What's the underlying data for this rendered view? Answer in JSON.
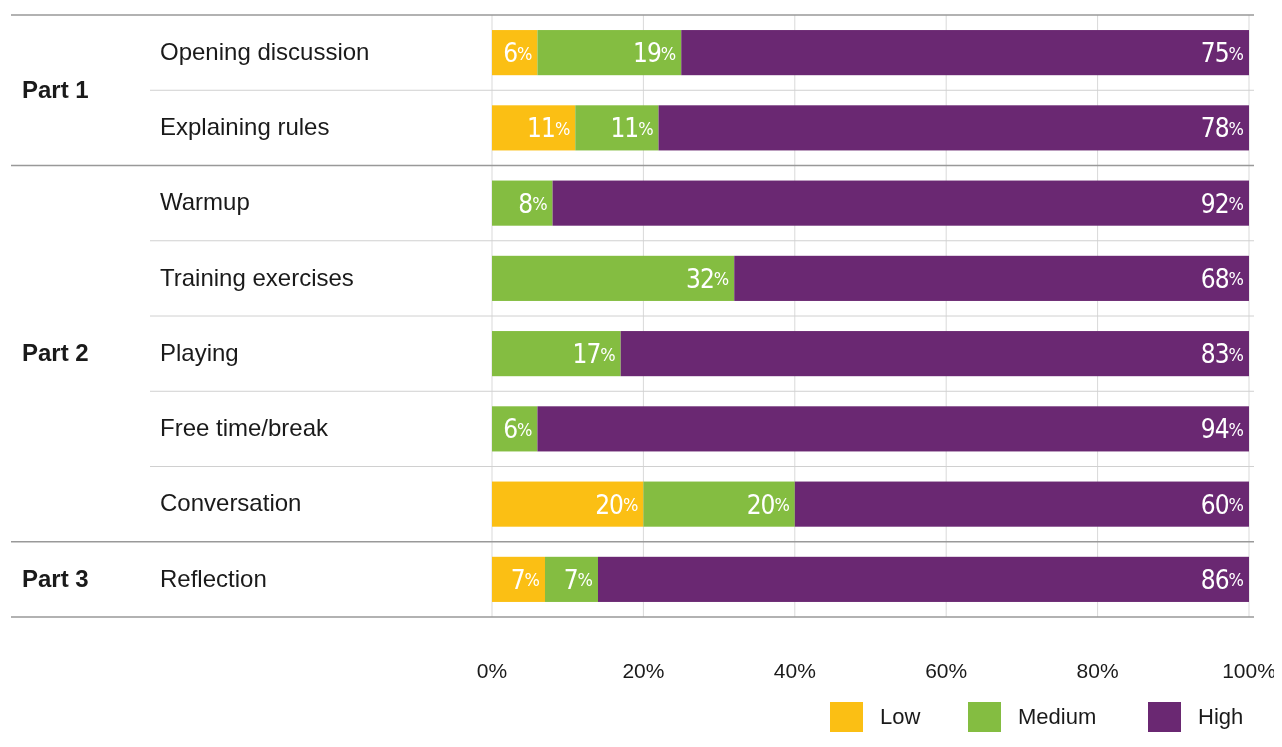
{
  "chart_data": {
    "type": "bar",
    "orientation": "horizontal",
    "stacked": true,
    "categories": [
      "Opening discussion",
      "Explaining rules",
      "Warmup",
      "Training exercises",
      "Playing",
      "Free time/break",
      "Conversation",
      "Reflection"
    ],
    "series": [
      {
        "name": "Low",
        "color": "#fbbf14",
        "values": [
          6,
          11,
          null,
          null,
          null,
          null,
          20,
          7
        ],
        "value_labels": [
          "6%",
          "11%",
          null,
          null,
          null,
          null,
          "20%",
          "7%"
        ]
      },
      {
        "name": "Medium",
        "color": "#84bd41",
        "values": [
          19,
          11,
          8,
          32,
          17,
          6,
          20,
          7
        ],
        "value_labels": [
          "19%",
          "11%",
          "8%",
          "32%",
          "17%",
          "6%",
          "20%",
          "7%"
        ]
      },
      {
        "name": "High",
        "color": "#6a2872",
        "values": [
          75,
          78,
          92,
          68,
          83,
          94,
          60,
          86
        ],
        "value_labels": [
          "75%",
          "78%",
          "92%",
          "68%",
          "83%",
          "94%",
          "60%",
          "86%"
        ]
      }
    ],
    "xlim": [
      0,
      100
    ],
    "xticks": [
      {
        "value": 0,
        "label": "0%"
      },
      {
        "value": 20,
        "label": "20%"
      },
      {
        "value": 40,
        "label": "40%"
      },
      {
        "value": 60,
        "label": "60%"
      },
      {
        "value": 80,
        "label": "80%"
      },
      {
        "value": 100,
        "label": "100%"
      }
    ],
    "annotations": [
      "Part 1",
      "Part 2",
      "Part 3"
    ],
    "grid": "x",
    "legend": "bottom right"
  }
}
